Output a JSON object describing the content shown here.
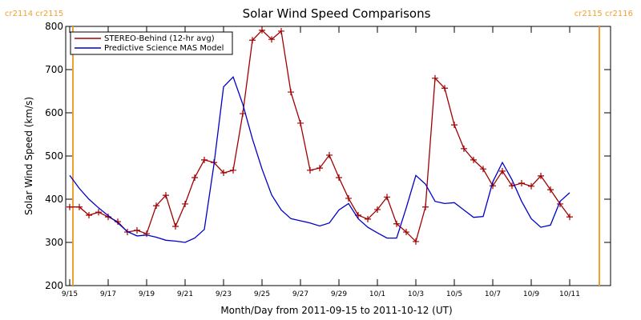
{
  "chart_data": {
    "type": "line",
    "title": "Solar Wind Speed Comparisons",
    "xlabel": "Month/Day from 2011-09-15 to 2011-10-12 (UT)",
    "ylabel": "Solar Wind Speed (km/s)",
    "x": [
      "2011-09-15T00:00",
      "2011-09-15T12:00",
      "2011-09-16T00:00",
      "2011-09-16T12:00",
      "2011-09-17T00:00",
      "2011-09-17T12:00",
      "2011-09-18T00:00",
      "2011-09-18T12:00",
      "2011-09-19T00:00",
      "2011-09-19T12:00",
      "2011-09-20T00:00",
      "2011-09-20T12:00",
      "2011-09-21T00:00",
      "2011-09-21T12:00",
      "2011-09-22T00:00",
      "2011-09-22T12:00",
      "2011-09-23T00:00",
      "2011-09-23T12:00",
      "2011-09-24T00:00",
      "2011-09-24T12:00",
      "2011-09-25T00:00",
      "2011-09-25T12:00",
      "2011-09-26T00:00",
      "2011-09-26T12:00",
      "2011-09-27T00:00",
      "2011-09-27T12:00",
      "2011-09-28T00:00",
      "2011-09-28T12:00",
      "2011-09-29T00:00",
      "2011-09-29T12:00",
      "2011-09-30T00:00",
      "2011-09-30T12:00",
      "2011-10-01T00:00",
      "2011-10-01T12:00",
      "2011-10-02T00:00",
      "2011-10-02T12:00",
      "2011-10-03T00:00",
      "2011-10-03T12:00",
      "2011-10-04T00:00",
      "2011-10-04T12:00",
      "2011-10-05T00:00",
      "2011-10-05T12:00",
      "2011-10-06T00:00",
      "2011-10-06T12:00",
      "2011-10-07T00:00",
      "2011-10-07T12:00",
      "2011-10-08T00:00",
      "2011-10-08T12:00",
      "2011-10-09T00:00",
      "2011-10-09T12:00",
      "2011-10-10T00:00",
      "2011-10-10T12:00",
      "2011-10-11T00:00"
    ],
    "series": [
      {
        "name": "STEREO-Behind (12-hr avg)",
        "color": "#a00000",
        "marker": "+",
        "values": [
          382,
          382,
          363,
          370,
          359,
          348,
          324,
          328,
          320,
          385,
          409,
          337,
          389,
          450,
          491,
          485,
          461,
          467,
          598,
          768,
          791,
          770,
          789,
          648,
          576,
          467,
          472,
          502,
          450,
          402,
          363,
          354,
          376,
          405,
          343,
          324,
          302,
          382,
          680,
          657,
          572,
          517,
          491,
          470,
          431,
          465,
          431,
          437,
          430,
          454,
          422,
          389,
          359
        ]
      },
      {
        "name": "Predictive Science MAS Model",
        "color": "#0000c8",
        "values": [
          455,
          425,
          400,
          380,
          362,
          345,
          325,
          315,
          317,
          312,
          305,
          303,
          300,
          310,
          330,
          480,
          660,
          683,
          620,
          540,
          470,
          410,
          375,
          355,
          350,
          345,
          338,
          345,
          375,
          390,
          355,
          335,
          322,
          310,
          310,
          380,
          455,
          435,
          395,
          390,
          392,
          375,
          358,
          360,
          440,
          485,
          445,
          395,
          355,
          335,
          340,
          395,
          415
        ]
      }
    ],
    "xlim": [
      "2011-09-14T19:00",
      "2011-10-13T03:00"
    ],
    "xticks": [
      {
        "value": "2011-09-15T00:00",
        "label": "9/15"
      },
      {
        "value": "2011-09-17T00:00",
        "label": "9/17"
      },
      {
        "value": "2011-09-19T00:00",
        "label": "9/19"
      },
      {
        "value": "2011-09-21T00:00",
        "label": "9/21"
      },
      {
        "value": "2011-09-23T00:00",
        "label": "9/23"
      },
      {
        "value": "2011-09-25T00:00",
        "label": "9/25"
      },
      {
        "value": "2011-09-27T00:00",
        "label": "9/27"
      },
      {
        "value": "2011-09-29T00:00",
        "label": "9/29"
      },
      {
        "value": "2011-10-01T00:00",
        "label": "10/1"
      },
      {
        "value": "2011-10-03T00:00",
        "label": "10/3"
      },
      {
        "value": "2011-10-05T00:00",
        "label": "10/5"
      },
      {
        "value": "2011-10-07T00:00",
        "label": "10/7"
      },
      {
        "value": "2011-10-09T00:00",
        "label": "10/9"
      },
      {
        "value": "2011-10-11T00:00",
        "label": "10/11"
      }
    ],
    "ylim": [
      200,
      800
    ],
    "yticks": [
      200,
      300,
      400,
      500,
      600,
      700,
      800
    ],
    "legend": "upper left",
    "annotations": [
      {
        "text": "cr2114 cr2115",
        "x": "2011-09-15T04:00",
        "color": "#f0a030"
      },
      {
        "text": "cr2115 cr2116",
        "x": "2011-10-12T13:00",
        "color": "#f0a030"
      }
    ]
  }
}
